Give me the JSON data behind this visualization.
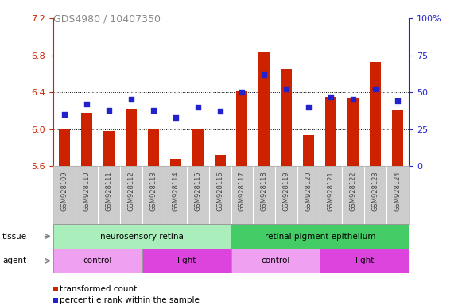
{
  "title": "GDS4980 / 10407350",
  "samples": [
    "GSM928109",
    "GSM928110",
    "GSM928111",
    "GSM928112",
    "GSM928113",
    "GSM928114",
    "GSM928115",
    "GSM928116",
    "GSM928117",
    "GSM928118",
    "GSM928119",
    "GSM928120",
    "GSM928121",
    "GSM928122",
    "GSM928123",
    "GSM928124"
  ],
  "red_values": [
    6.0,
    6.18,
    5.98,
    6.22,
    6.0,
    5.68,
    6.01,
    5.72,
    6.42,
    6.84,
    6.65,
    5.94,
    6.35,
    6.33,
    6.73,
    6.2
  ],
  "blue_values": [
    35,
    42,
    38,
    45,
    38,
    33,
    40,
    37,
    50,
    62,
    52,
    40,
    47,
    45,
    52,
    44
  ],
  "ylim_left": [
    5.6,
    7.2
  ],
  "ylim_right": [
    0,
    100
  ],
  "yticks_left": [
    5.6,
    6.0,
    6.4,
    6.8,
    7.2
  ],
  "yticks_right": [
    0,
    25,
    50,
    75,
    100
  ],
  "ytick_labels_right": [
    "0",
    "25",
    "50",
    "75",
    "100%"
  ],
  "grid_values": [
    6.0,
    6.4,
    6.8
  ],
  "tissue_groups": [
    {
      "label": "neurosensory retina",
      "start": 0,
      "end": 8,
      "color": "#aaeebb"
    },
    {
      "label": "retinal pigment epithelium",
      "start": 8,
      "end": 16,
      "color": "#44cc66"
    }
  ],
  "agent_groups": [
    {
      "label": "control",
      "start": 0,
      "end": 4,
      "color": "#f0a0f0"
    },
    {
      "label": "light",
      "start": 4,
      "end": 8,
      "color": "#dd44dd"
    },
    {
      "label": "control",
      "start": 8,
      "end": 12,
      "color": "#f0a0f0"
    },
    {
      "label": "light",
      "start": 12,
      "end": 16,
      "color": "#dd44dd"
    }
  ],
  "bar_color": "#cc2200",
  "dot_color": "#2222cc",
  "bar_width": 0.5,
  "dot_size": 22,
  "legend_items": [
    {
      "label": "transformed count",
      "color": "#cc2200"
    },
    {
      "label": "percentile rank within the sample",
      "color": "#2222cc"
    }
  ],
  "title_color": "#888888",
  "left_tick_color": "#cc2200",
  "right_tick_color": "#2222cc",
  "sample_bg": "#cccccc",
  "sample_text_color": "#444444"
}
